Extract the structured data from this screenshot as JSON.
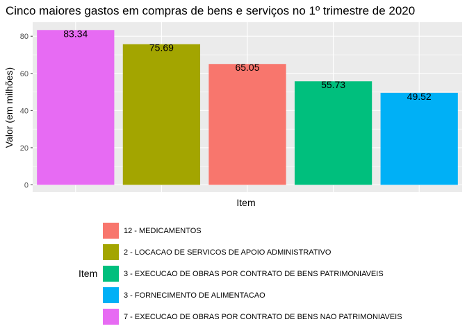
{
  "chart_data": {
    "type": "bar",
    "title": "Cinco maiores gastos em compras de bens e serviços no 1º trimestre de 2020",
    "xlabel": "Item",
    "ylabel": "Valor (em milhões)",
    "ylim": [
      0,
      86
    ],
    "yticks": [
      0,
      20,
      40,
      60,
      80
    ],
    "grid": true,
    "legend_position": "bottom",
    "legend_title": "Item",
    "bars": [
      {
        "item": "7 - EXECUCAO DE OBRAS POR CONTRATO DE BENS NAO PATRIMONIAVEIS",
        "value": 83.34,
        "label": "83.34",
        "color": "#E76BF3"
      },
      {
        "item": "2 - LOCACAO DE SERVICOS DE APOIO ADMINISTRATIVO",
        "value": 75.69,
        "label": "75.69",
        "color": "#A3A500"
      },
      {
        "item": "12 - MEDICAMENTOS",
        "value": 65.05,
        "label": "65.05",
        "color": "#F8766D"
      },
      {
        "item": "3 - EXECUCAO DE OBRAS POR CONTRATO DE BENS PATRIMONIAVEIS",
        "value": 55.73,
        "label": "55.73",
        "color": "#00BF7D"
      },
      {
        "item": "3 - FORNECIMENTO DE ALIMENTACAO",
        "value": 49.52,
        "label": "49.52",
        "color": "#00B0F6"
      }
    ],
    "legend": [
      {
        "label": "12 - MEDICAMENTOS",
        "color": "#F8766D"
      },
      {
        "label": "2 - LOCACAO DE SERVICOS DE APOIO ADMINISTRATIVO",
        "color": "#A3A500"
      },
      {
        "label": "3 - EXECUCAO DE OBRAS POR CONTRATO DE BENS PATRIMONIAVEIS",
        "color": "#00BF7D"
      },
      {
        "label": "3 - FORNECIMENTO DE ALIMENTACAO",
        "color": "#00B0F6"
      },
      {
        "label": "7 - EXECUCAO DE OBRAS POR CONTRATO DE BENS NAO PATRIMONIAVEIS",
        "color": "#E76BF3"
      }
    ]
  }
}
